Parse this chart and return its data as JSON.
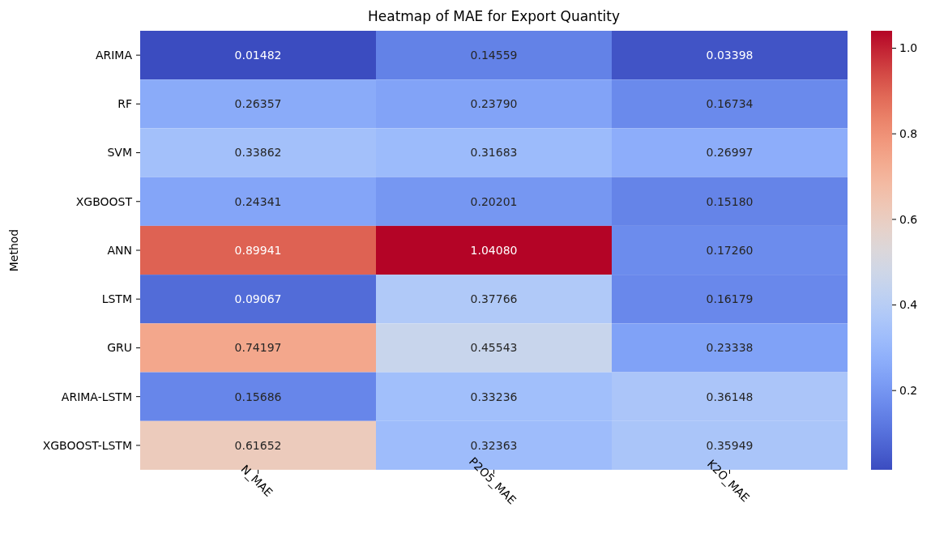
{
  "chart_data": {
    "type": "heatmap",
    "title": "Heatmap of MAE for Export Quantity",
    "ylabel": "Method",
    "categories": [
      "N_MAE",
      "P2O5_MAE",
      "K2O_MAE"
    ],
    "y_categories": [
      "ARIMA",
      "RF",
      "SVM",
      "XGBOOST",
      "ANN",
      "LSTM",
      "GRU",
      "ARIMA-LSTM",
      "XGBOOST-LSTM"
    ],
    "cells": [
      [
        0.01482,
        0.14559,
        0.03398
      ],
      [
        0.26357,
        0.2379,
        0.16734
      ],
      [
        0.33862,
        0.31683,
        0.26997
      ],
      [
        0.24341,
        0.20201,
        0.1518
      ],
      [
        0.89941,
        1.0408,
        0.1726
      ],
      [
        0.09067,
        0.37766,
        0.16179
      ],
      [
        0.74197,
        0.45543,
        0.23338
      ],
      [
        0.15686,
        0.33236,
        0.36148
      ],
      [
        0.61652,
        0.32363,
        0.35949
      ]
    ],
    "cell_labels": [
      [
        "0.01482",
        "0.14559",
        "0.03398"
      ],
      [
        "0.26357",
        "0.23790",
        "0.16734"
      ],
      [
        "0.33862",
        "0.31683",
        "0.26997"
      ],
      [
        "0.24341",
        "0.20201",
        "0.15180"
      ],
      [
        "0.89941",
        "1.04080",
        "0.17260"
      ],
      [
        "0.09067",
        "0.37766",
        "0.16179"
      ],
      [
        "0.74197",
        "0.45543",
        "0.23338"
      ],
      [
        "0.15686",
        "0.33236",
        "0.36148"
      ],
      [
        "0.61652",
        "0.32363",
        "0.35949"
      ]
    ],
    "clim": [
      0.01482,
      1.0408
    ],
    "cticks": [
      {
        "value": 0.2,
        "label": "0.2"
      },
      {
        "value": 0.4,
        "label": "0.4"
      },
      {
        "value": 0.6,
        "label": "0.6"
      },
      {
        "value": 0.8,
        "label": "0.8"
      },
      {
        "value": 1.0,
        "label": "1.0"
      }
    ]
  }
}
